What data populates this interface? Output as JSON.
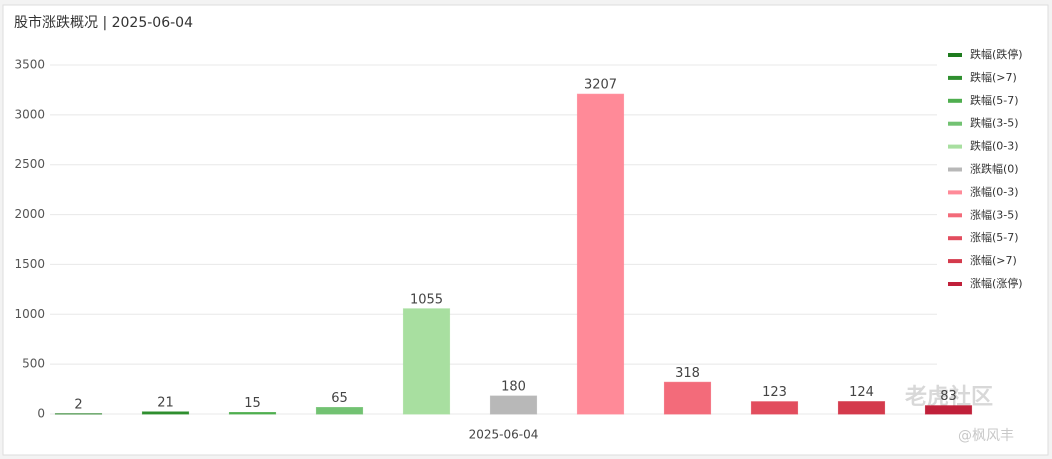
{
  "chart_data": {
    "type": "bar",
    "title": "股市涨跌概况 | 2025-06-04",
    "categories": [
      "2025-06-04"
    ],
    "series": [
      {
        "name": "跌幅(跌停)",
        "color": "#1e7b1e",
        "values": [
          2
        ]
      },
      {
        "name": "跌幅(>7)",
        "color": "#2f8f2f",
        "values": [
          21
        ]
      },
      {
        "name": "跌幅(5-7)",
        "color": "#4fae4f",
        "values": [
          15
        ]
      },
      {
        "name": "跌幅(3-5)",
        "color": "#72c272",
        "values": [
          65
        ]
      },
      {
        "name": "跌幅(0-3)",
        "color": "#a8dfa0",
        "values": [
          1055
        ]
      },
      {
        "name": "涨跌幅(0)",
        "color": "#b8b8b8",
        "values": [
          180
        ]
      },
      {
        "name": "涨幅(0-3)",
        "color": "#ff8a98",
        "values": [
          3207
        ]
      },
      {
        "name": "涨幅(3-5)",
        "color": "#f36b7a",
        "values": [
          318
        ]
      },
      {
        "name": "涨幅(5-7)",
        "color": "#e24d5e",
        "values": [
          123
        ]
      },
      {
        "name": "涨幅(>7)",
        "color": "#d43a4c",
        "values": [
          124
        ]
      },
      {
        "name": "涨幅(涨停)",
        "color": "#c0203a",
        "values": [
          83
        ]
      }
    ],
    "ylim": [
      0,
      3500
    ],
    "yticks": [
      0,
      500,
      1000,
      1500,
      2000,
      2500,
      3000,
      3500
    ],
    "grid": true,
    "legend": "right",
    "watermark": "老虎社区",
    "watermark_author": "@枫风丰"
  }
}
